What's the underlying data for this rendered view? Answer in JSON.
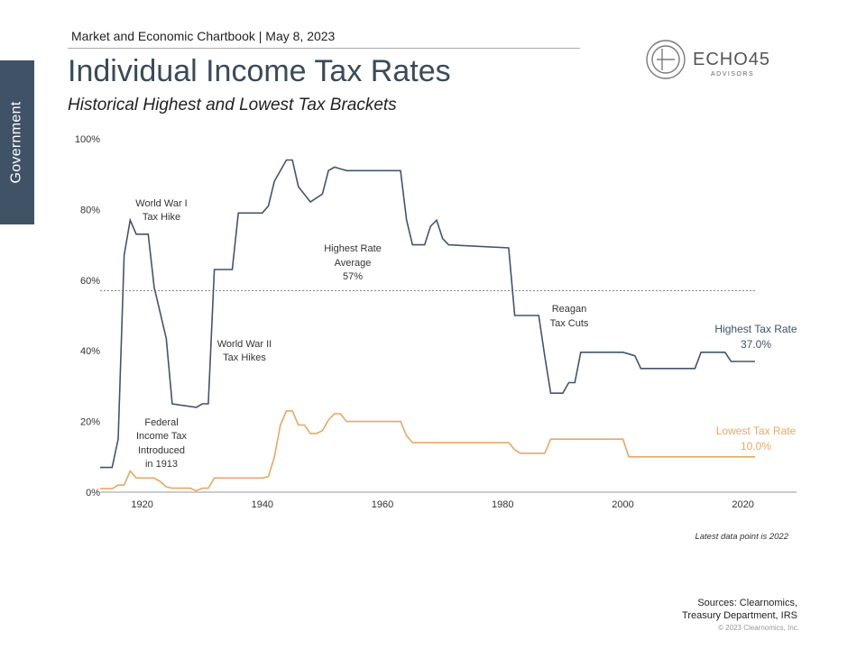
{
  "header": {
    "line": "Market and Economic Chartbook | May 8, 2023",
    "title": "Individual Income Tax Rates",
    "subtitle": "Historical Highest and Lowest Tax Brackets"
  },
  "side_tab": {
    "label": "Government"
  },
  "logo": {
    "name": "ECHO45",
    "tagline": "ADVISORS"
  },
  "footer": {
    "sources_line1": "Sources: Clearnomics,",
    "sources_line2": "Treasury Department, IRS",
    "copyright": "© 2023 Clearnomics, Inc."
  },
  "chart_data": {
    "type": "line",
    "title": "Individual Income Tax Rates",
    "subtitle": "Historical Highest and Lowest Tax Brackets",
    "xlabel": "",
    "ylabel": "",
    "xlim": [
      1913,
      2022
    ],
    "ylim": [
      0,
      100
    ],
    "x_ticks": [
      1920,
      1940,
      1960,
      1980,
      2000,
      2020
    ],
    "y_ticks": [
      0,
      20,
      40,
      60,
      80,
      100
    ],
    "y_tick_labels": [
      "0%",
      "20%",
      "40%",
      "60%",
      "80%",
      "100%"
    ],
    "grid": false,
    "average_line": {
      "value": 57,
      "label": "Highest Rate Average 57%"
    },
    "series": [
      {
        "name": "Highest Tax Rate",
        "end_label": "37.0%",
        "color": "#44546a",
        "points": [
          [
            1913,
            7
          ],
          [
            1915,
            7
          ],
          [
            1916,
            15
          ],
          [
            1917,
            67
          ],
          [
            1918,
            77
          ],
          [
            1919,
            73
          ],
          [
            1921,
            73
          ],
          [
            1922,
            58
          ],
          [
            1924,
            43.5
          ],
          [
            1925,
            25
          ],
          [
            1929,
            24
          ],
          [
            1930,
            25
          ],
          [
            1931,
            25
          ],
          [
            1932,
            63
          ],
          [
            1935,
            63
          ],
          [
            1936,
            79
          ],
          [
            1940,
            79
          ],
          [
            1941,
            81
          ],
          [
            1942,
            88
          ],
          [
            1944,
            94
          ],
          [
            1945,
            94
          ],
          [
            1946,
            86.45
          ],
          [
            1948,
            82.13
          ],
          [
            1950,
            84.36
          ],
          [
            1951,
            91
          ],
          [
            1952,
            92
          ],
          [
            1954,
            91
          ],
          [
            1963,
            91
          ],
          [
            1964,
            77
          ],
          [
            1965,
            70
          ],
          [
            1967,
            70
          ],
          [
            1968,
            75.25
          ],
          [
            1969,
            77
          ],
          [
            1970,
            71.75
          ],
          [
            1971,
            70
          ],
          [
            1981,
            69.125
          ],
          [
            1982,
            50
          ],
          [
            1986,
            50
          ],
          [
            1987,
            38.5
          ],
          [
            1988,
            28
          ],
          [
            1990,
            28
          ],
          [
            1991,
            31
          ],
          [
            1992,
            31
          ],
          [
            1993,
            39.6
          ],
          [
            2000,
            39.6
          ],
          [
            2001,
            39.1
          ],
          [
            2002,
            38.6
          ],
          [
            2003,
            35
          ],
          [
            2012,
            35
          ],
          [
            2013,
            39.6
          ],
          [
            2017,
            39.6
          ],
          [
            2018,
            37
          ],
          [
            2022,
            37
          ]
        ]
      },
      {
        "name": "Lowest Tax Rate",
        "end_label": "10.0%",
        "color": "#e8a863",
        "points": [
          [
            1913,
            1
          ],
          [
            1915,
            1
          ],
          [
            1916,
            2
          ],
          [
            1917,
            2
          ],
          [
            1918,
            6
          ],
          [
            1919,
            4
          ],
          [
            1922,
            4
          ],
          [
            1923,
            3
          ],
          [
            1924,
            1.5
          ],
          [
            1925,
            1.125
          ],
          [
            1928,
            1.125
          ],
          [
            1929,
            0.375
          ],
          [
            1930,
            1.125
          ],
          [
            1931,
            1.125
          ],
          [
            1932,
            4
          ],
          [
            1940,
            4
          ],
          [
            1941,
            4.4
          ],
          [
            1942,
            10
          ],
          [
            1943,
            19
          ],
          [
            1944,
            23
          ],
          [
            1945,
            23
          ],
          [
            1946,
            19
          ],
          [
            1947,
            19
          ],
          [
            1948,
            16.6
          ],
          [
            1949,
            16.6
          ],
          [
            1950,
            17.4
          ],
          [
            1951,
            20.4
          ],
          [
            1952,
            22.2
          ],
          [
            1953,
            22.2
          ],
          [
            1954,
            20
          ],
          [
            1963,
            20
          ],
          [
            1964,
            16
          ],
          [
            1965,
            14
          ],
          [
            1981,
            14
          ],
          [
            1982,
            12
          ],
          [
            1983,
            11
          ],
          [
            1987,
            11
          ],
          [
            1988,
            15
          ],
          [
            2000,
            15
          ],
          [
            2001,
            10
          ],
          [
            2022,
            10
          ]
        ]
      }
    ],
    "annotations": [
      {
        "lines": [
          "World War I",
          "Tax Hike"
        ]
      },
      {
        "lines": [
          "Federal",
          "Income Tax",
          "Introduced",
          "in 1913"
        ]
      },
      {
        "lines": [
          "World War II",
          "Tax Hikes"
        ]
      },
      {
        "lines": [
          "Highest Rate",
          "Average",
          "57%"
        ]
      },
      {
        "lines": [
          "Reagan",
          "Tax Cuts"
        ]
      }
    ],
    "footnote": "Latest data point is 2022"
  }
}
